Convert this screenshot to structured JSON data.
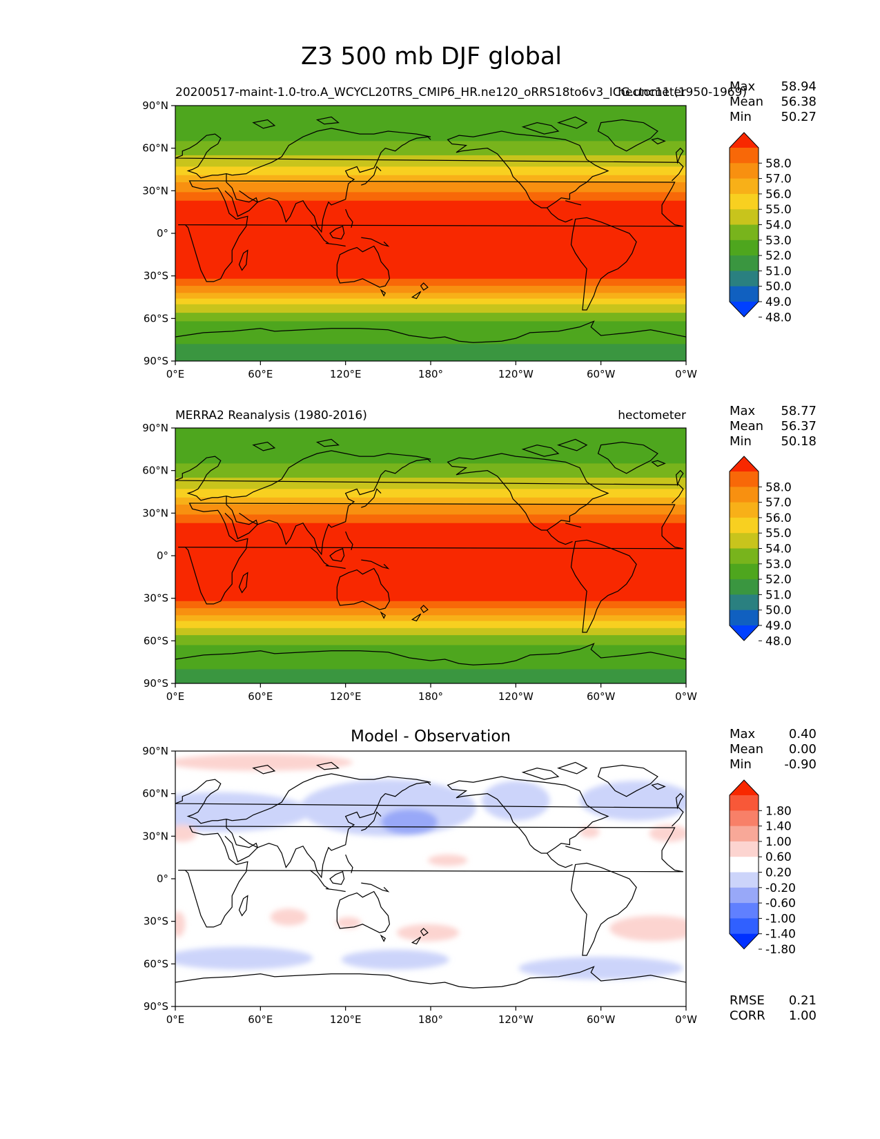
{
  "figure": {
    "title": "Z3 500 mb DJF global"
  },
  "colors": {
    "mean_levels": [
      "#0040ff",
      "#1060c0",
      "#2a8080",
      "#3a9640",
      "#4ea61e",
      "#78b41c",
      "#c8c41c",
      "#f8d020",
      "#f8b018",
      "#f89010",
      "#f86808",
      "#f82800"
    ],
    "diff_levels": [
      "#0030ff",
      "#3060ff",
      "#6080ff",
      "#98a8f8",
      "#ccd4fa",
      "#ffffff",
      "#fcd4d0",
      "#f8a898",
      "#f88068",
      "#f85838",
      "#f82800"
    ],
    "coastline": "#000000"
  },
  "chart_data": [
    {
      "type": "heatmap",
      "subtitle_left": "20200517-maint-1.0-tro.A_WCYCL20TRS_CMIP6_HR.ne120_oRRS18to6v3_ICG.unc11 (1950-1969)",
      "subtitle_right": "hectometer",
      "stats": [
        {
          "label": "Max",
          "value": "58.94"
        },
        {
          "label": "Mean",
          "value": "56.38"
        },
        {
          "label": "Min",
          "value": "50.27"
        }
      ],
      "colorbar_ticks": [
        "58.0",
        "57.0",
        "56.0",
        "55.0",
        "54.0",
        "53.0",
        "52.0",
        "51.0",
        "50.0",
        "49.0",
        "48.0"
      ],
      "xticks": [
        "0°E",
        "60°E",
        "120°E",
        "180°",
        "120°W",
        "60°W",
        "0°W"
      ],
      "yticks": [
        "90°N",
        "60°N",
        "30°N",
        "0°",
        "30°S",
        "60°S",
        "90°S"
      ],
      "xlim": [
        0,
        360
      ],
      "ylim": [
        -90,
        90
      ],
      "profile_lat": [
        -90,
        -80,
        -70,
        -62,
        -55,
        -48,
        -42,
        -36,
        -30,
        -20,
        0,
        20,
        25,
        30,
        38,
        45,
        55,
        65,
        75,
        85,
        90
      ],
      "profile_value": [
        50.6,
        50.9,
        51.3,
        52.0,
        53.1,
        54.4,
        55.9,
        57.2,
        58.3,
        58.6,
        58.8,
        58.4,
        57.8,
        56.9,
        55.6,
        54.3,
        53.0,
        52.0,
        51.5,
        51.2,
        51.1
      ]
    },
    {
      "type": "heatmap",
      "subtitle_left": "MERRA2 Reanalysis (1980-2016)",
      "subtitle_right": "hectometer",
      "stats": [
        {
          "label": "Max",
          "value": "58.77"
        },
        {
          "label": "Mean",
          "value": "56.37"
        },
        {
          "label": "Min",
          "value": "50.18"
        }
      ],
      "colorbar_ticks": [
        "58.0",
        "57.0",
        "56.0",
        "55.0",
        "54.0",
        "53.0",
        "52.0",
        "51.0",
        "50.0",
        "49.0",
        "48.0"
      ],
      "xticks": [
        "0°E",
        "60°E",
        "120°E",
        "180°",
        "120°W",
        "60°W",
        "0°W"
      ],
      "yticks": [
        "90°N",
        "60°N",
        "30°N",
        "0°",
        "30°S",
        "60°S",
        "90°S"
      ],
      "xlim": [
        0,
        360
      ],
      "ylim": [
        -90,
        90
      ],
      "profile_lat": [
        -90,
        -80,
        -70,
        -62,
        -55,
        -48,
        -42,
        -36,
        -30,
        -20,
        0,
        20,
        25,
        30,
        38,
        45,
        55,
        65,
        75,
        85,
        90
      ],
      "profile_value": [
        50.7,
        51.0,
        51.4,
        52.1,
        53.2,
        54.5,
        56.0,
        57.3,
        58.3,
        58.6,
        58.8,
        58.4,
        57.8,
        56.9,
        55.6,
        54.3,
        53.0,
        52.0,
        51.5,
        51.2,
        51.1
      ]
    },
    {
      "type": "heatmap",
      "title": "Model - Observation",
      "stats": [
        {
          "label": "Max",
          "value": "0.40"
        },
        {
          "label": "Mean",
          "value": "0.00"
        },
        {
          "label": "Min",
          "value": "-0.90"
        }
      ],
      "colorbar_ticks": [
        "1.80",
        "1.40",
        "1.00",
        "0.60",
        "0.20",
        "-0.20",
        "-0.60",
        "-1.00",
        "-1.40",
        "-1.80"
      ],
      "extra_stats": [
        {
          "label": "RMSE",
          "value": "0.21"
        },
        {
          "label": "CORR",
          "value": "1.00"
        }
      ],
      "xticks": [
        "0°E",
        "60°E",
        "120°E",
        "180°",
        "120°W",
        "60°W",
        "0°W"
      ],
      "yticks": [
        "90°N",
        "60°N",
        "30°N",
        "0°",
        "30°S",
        "60°S",
        "90°S"
      ],
      "xlim": [
        0,
        360
      ],
      "ylim": [
        -90,
        90
      ],
      "anomalies": [
        {
          "lon": 60,
          "lat": 82,
          "dlon": 65,
          "dlat": 6,
          "level": 6
        },
        {
          "lon": 30,
          "lat": 47,
          "dlon": 65,
          "dlat": 14,
          "level": 4
        },
        {
          "lon": 150,
          "lat": 50,
          "dlon": 62,
          "dlat": 20,
          "level": 4
        },
        {
          "lon": 165,
          "lat": 40,
          "dlon": 20,
          "dlat": 9,
          "level": 3
        },
        {
          "lon": 240,
          "lat": 55,
          "dlon": 24,
          "dlat": 14,
          "level": 4
        },
        {
          "lon": 325,
          "lat": 55,
          "dlon": 40,
          "dlat": 14,
          "level": 4
        },
        {
          "lon": 348,
          "lat": 32,
          "dlon": 14,
          "dlat": 6,
          "level": 6
        },
        {
          "lon": 5,
          "lat": 32,
          "dlon": 10,
          "dlat": 6,
          "level": 6
        },
        {
          "lon": 292,
          "lat": 33,
          "dlon": 7,
          "dlat": 4,
          "level": 6
        },
        {
          "lon": 192,
          "lat": 13,
          "dlon": 14,
          "dlat": 4,
          "level": 6
        },
        {
          "lon": 80,
          "lat": -27,
          "dlon": 13,
          "dlat": 6,
          "level": 6
        },
        {
          "lon": 122,
          "lat": -31,
          "dlon": 9,
          "dlat": 4,
          "level": 6
        },
        {
          "lon": 178,
          "lat": -38,
          "dlon": 22,
          "dlat": 6,
          "level": 6
        },
        {
          "lon": 338,
          "lat": -35,
          "dlon": 32,
          "dlat": 9,
          "level": 6
        },
        {
          "lon": 2,
          "lat": -32,
          "dlon": 5,
          "dlat": 9,
          "level": 6
        },
        {
          "lon": 45,
          "lat": -56,
          "dlon": 52,
          "dlat": 8,
          "level": 4
        },
        {
          "lon": 155,
          "lat": -57,
          "dlon": 38,
          "dlat": 7,
          "level": 4
        },
        {
          "lon": 300,
          "lat": -63,
          "dlon": 58,
          "dlat": 8,
          "level": 4
        }
      ]
    }
  ]
}
